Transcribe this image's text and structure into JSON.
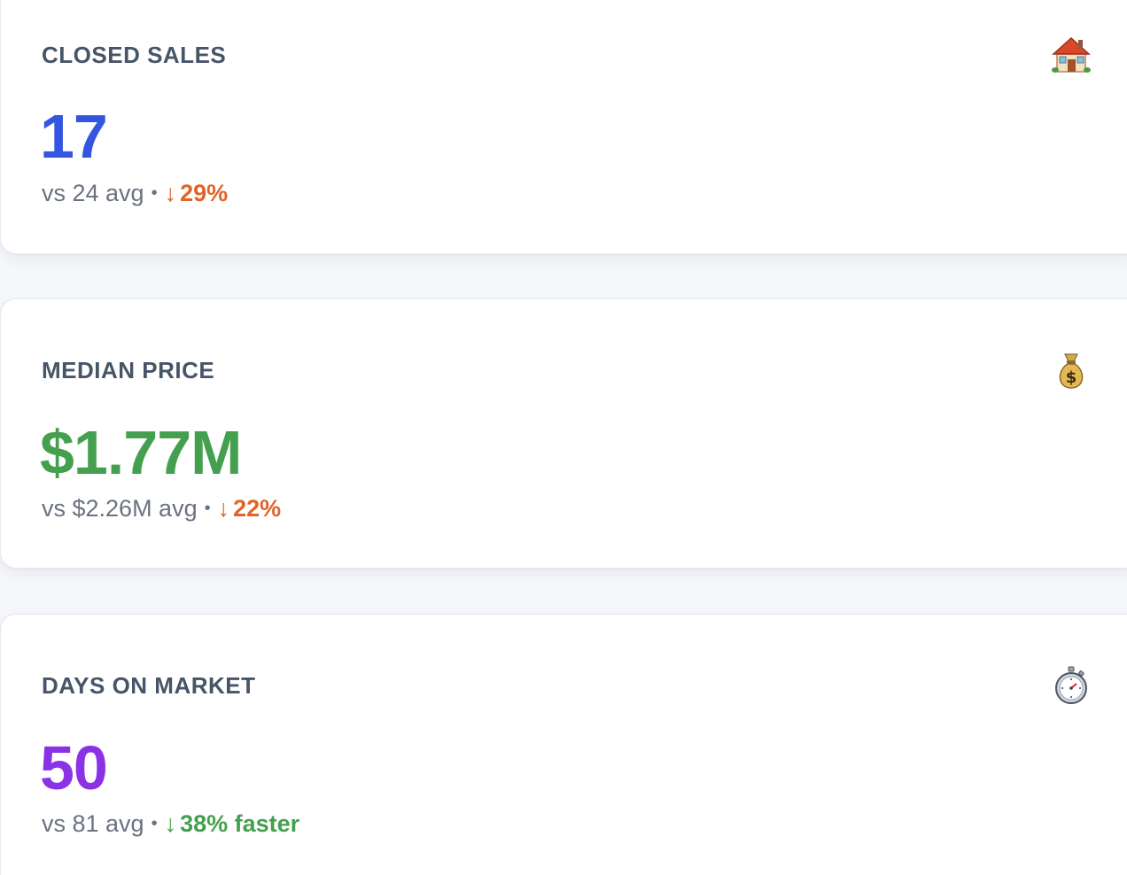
{
  "cards": [
    {
      "label": "CLOSED SALES",
      "icon": "house-icon",
      "value": "17",
      "value_color": "#3355e0",
      "comparison": "vs 24 avg",
      "separator": "•",
      "delta_arrow": "↓",
      "delta": "29%",
      "delta_color": "#e0642a"
    },
    {
      "label": "MEDIAN PRICE",
      "icon": "money-bag-icon",
      "value": "$1.77M",
      "value_color": "#44a04e",
      "comparison": "vs $2.26M avg",
      "separator": "•",
      "delta_arrow": "↓",
      "delta": "22%",
      "delta_color": "#e0642a"
    },
    {
      "label": "DAYS ON MARKET",
      "icon": "stopwatch-icon",
      "value": "50",
      "value_color": "#8a33e6",
      "comparison": "vs 81 avg",
      "separator": "•",
      "delta_arrow": "↓",
      "delta": "38% faster",
      "delta_color": "#44a04e"
    }
  ]
}
